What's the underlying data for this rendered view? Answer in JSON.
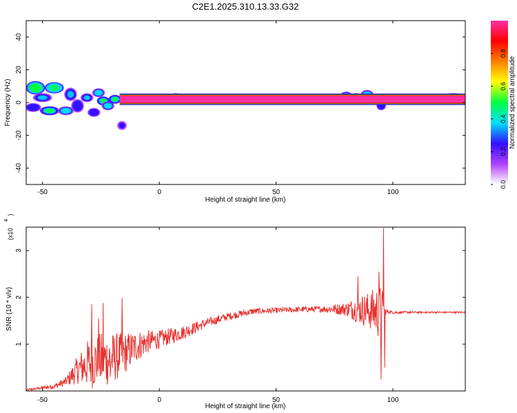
{
  "title": "C2E1.2025.310.13.33.G32",
  "chart_data": [
    {
      "type": "heatmap",
      "name": "spectrogram",
      "xlabel": "Height of straight line (km)",
      "ylabel": "Frequency (Hz)",
      "xlim": [
        -57,
        131
      ],
      "ylim": [
        -50,
        50
      ],
      "xticks": [
        -50,
        0,
        50,
        100
      ],
      "yticks": [
        -40,
        -20,
        0,
        20,
        40
      ],
      "xtick_labels": [
        "-50",
        "0",
        "50",
        "100"
      ],
      "ytick_labels": [
        "-40",
        "-20",
        "0",
        "20",
        "40"
      ],
      "baseline_band": {
        "x": [
          -17,
          131
        ],
        "freq_low": 0,
        "freq_high": 4,
        "value": 0.95
      },
      "blobs": [
        {
          "x": -53,
          "f": 9,
          "v": 0.55,
          "rx": 3,
          "rf": 3
        },
        {
          "x": -45,
          "f": 9,
          "v": 0.5,
          "rx": 3,
          "rf": 2.5
        },
        {
          "x": -50,
          "f": 3,
          "v": 0.35,
          "rx": 3,
          "rf": 2
        },
        {
          "x": -54,
          "f": -3,
          "v": 0.3,
          "rx": 2.5,
          "rf": 2
        },
        {
          "x": -47,
          "f": -5,
          "v": 0.45,
          "rx": 3,
          "rf": 2
        },
        {
          "x": -40,
          "f": -5,
          "v": 0.4,
          "rx": 2.5,
          "rf": 2
        },
        {
          "x": -38,
          "f": 5,
          "v": 0.35,
          "rx": 2,
          "rf": 3
        },
        {
          "x": -35,
          "f": -2,
          "v": 0.3,
          "rx": 2,
          "rf": 3
        },
        {
          "x": -31,
          "f": 3,
          "v": 0.35,
          "rx": 2,
          "rf": 2
        },
        {
          "x": -28,
          "f": -6,
          "v": 0.3,
          "rx": 2,
          "rf": 2
        },
        {
          "x": -26,
          "f": 6,
          "v": 0.4,
          "rx": 2,
          "rf": 2
        },
        {
          "x": -24,
          "f": 1,
          "v": 0.45,
          "rx": 2,
          "rf": 2
        },
        {
          "x": -22,
          "f": -2,
          "v": 0.4,
          "rx": 2,
          "rf": 2
        },
        {
          "x": -19,
          "f": 2,
          "v": 0.45,
          "rx": 2,
          "rf": 2
        },
        {
          "x": -16,
          "f": -14,
          "v": 0.25,
          "rx": 1.5,
          "rf": 2
        },
        {
          "x": -12,
          "f": 2,
          "v": 0.6,
          "rx": 3,
          "rf": 1.5
        },
        {
          "x": -5,
          "f": 1,
          "v": 0.7,
          "rx": 3,
          "rf": 1.5
        },
        {
          "x": 7,
          "f": 3,
          "v": 0.55,
          "rx": 2,
          "rf": 2
        },
        {
          "x": 30,
          "f": 1,
          "v": 0.5,
          "rx": 3,
          "rf": 1.5
        },
        {
          "x": 68,
          "f": 1,
          "v": 0.5,
          "rx": 3,
          "rf": 1.5
        },
        {
          "x": 80,
          "f": 4,
          "v": 0.4,
          "rx": 2,
          "rf": 2
        },
        {
          "x": 84,
          "f": 3,
          "v": 0.45,
          "rx": 2,
          "rf": 2
        },
        {
          "x": 89,
          "f": 5,
          "v": 0.4,
          "rx": 2,
          "rf": 2
        },
        {
          "x": 92,
          "f": 2,
          "v": 0.5,
          "rx": 2,
          "rf": 2
        },
        {
          "x": 95,
          "f": -2,
          "v": 0.3,
          "rx": 1.5,
          "rf": 2
        },
        {
          "x": 126,
          "f": 3,
          "v": 0.45,
          "rx": 4,
          "rf": 2
        }
      ],
      "colorbar": {
        "label": "Normalized spectral amplitude",
        "range": [
          0,
          1
        ],
        "ticks": [
          0.0,
          0.2,
          0.4,
          0.6,
          0.8
        ],
        "tick_labels": [
          "0.0",
          "0.2",
          "0.4",
          "0.6",
          "0.8"
        ],
        "colors": [
          "#ffffff",
          "#b040ff",
          "#3010ff",
          "#00e0ff",
          "#00ff40",
          "#ffff00",
          "#ff8000",
          "#ff0000",
          "#ff30a0"
        ]
      }
    },
    {
      "type": "line",
      "name": "snr",
      "xlabel": "Height of straight line (km)",
      "ylabel": "SNR (10 * v/v)",
      "scale_label": "(x10",
      "scale_exponent": "4",
      "xlim": [
        -57,
        131
      ],
      "ylim": [
        0,
        3.5
      ],
      "xticks": [
        -50,
        0,
        50,
        100
      ],
      "yticks": [
        1,
        2,
        3
      ],
      "xtick_labels": [
        "-50",
        "0",
        "50",
        "100"
      ],
      "ytick_labels": [
        "1",
        "2",
        "3"
      ],
      "color": "#e8312e",
      "envelope": {
        "x": [
          -57,
          -45,
          -40,
          -35,
          -30,
          -25,
          -20,
          -15,
          -10,
          -5,
          0,
          10,
          20,
          30,
          40,
          50,
          60,
          70,
          80,
          85,
          90,
          93,
          95,
          97,
          100,
          110,
          120,
          131
        ],
        "mean": [
          0.02,
          0.1,
          0.2,
          0.45,
          0.6,
          0.65,
          0.7,
          0.8,
          0.95,
          1.05,
          1.1,
          1.25,
          1.45,
          1.6,
          1.7,
          1.72,
          1.74,
          1.75,
          1.75,
          1.75,
          1.72,
          1.7,
          1.7,
          1.7,
          1.68,
          1.68,
          1.68,
          1.68
        ],
        "amp": [
          0.02,
          0.05,
          0.1,
          0.3,
          0.55,
          0.6,
          0.55,
          0.45,
          0.35,
          0.25,
          0.2,
          0.15,
          0.1,
          0.08,
          0.07,
          0.06,
          0.06,
          0.07,
          0.15,
          0.3,
          0.4,
          0.55,
          0.6,
          0.05,
          0.03,
          0.02,
          0.02,
          0.02
        ]
      },
      "spikes": [
        {
          "x": -29,
          "y": 1.85
        },
        {
          "x": -26,
          "y": 1.55
        },
        {
          "x": -24,
          "y": 1.88
        },
        {
          "x": -21,
          "y": 0.3
        },
        {
          "x": -16,
          "y": 1.99
        },
        {
          "x": 85,
          "y": 2.45
        },
        {
          "x": 94,
          "y": 2.55
        },
        {
          "x": 95,
          "y": 0.25
        },
        {
          "x": 96,
          "y": 3.48
        },
        {
          "x": 96.5,
          "y": 0.5
        }
      ]
    }
  ]
}
